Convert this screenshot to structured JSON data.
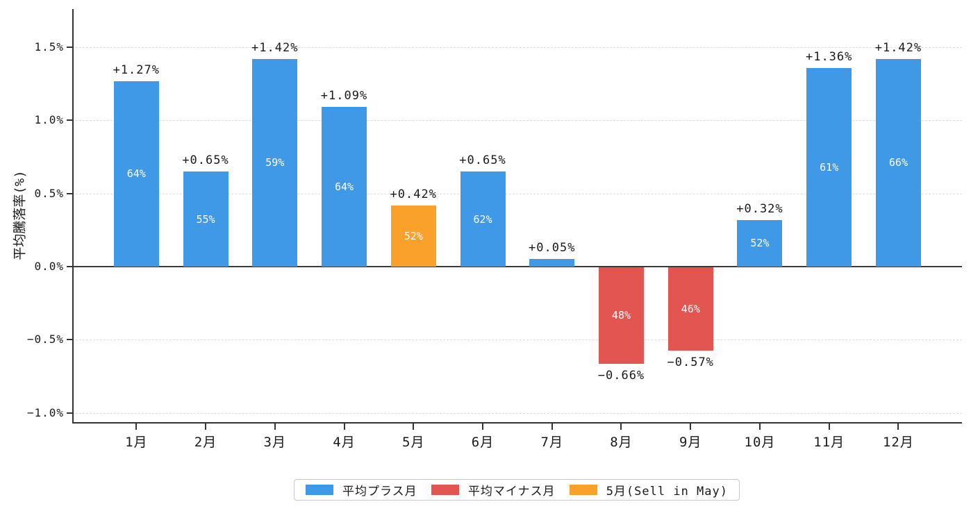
{
  "colors": {
    "plus": "#4099E6",
    "minus": "#E25550",
    "may": "#F9A12B",
    "grid": "#DCDCDC",
    "axis": "#333333",
    "zero_line": "#3A3A3A",
    "label_text": "#1A1A1A",
    "inside_label_text": "#FFFFFF",
    "legend_border": "#C9C9C9",
    "background": "#FFFFFF"
  },
  "legend": {
    "items": [
      {
        "key": "plus",
        "label": "平均プラス月"
      },
      {
        "key": "minus",
        "label": "平均マイナス月"
      },
      {
        "key": "may",
        "label": "5月(Sell in May)"
      }
    ]
  },
  "chart_data": {
    "type": "bar",
    "title": "",
    "xlabel": "",
    "ylabel": "平均騰落率(%)",
    "ylim": [
      -1.06,
      1.76
    ],
    "grid": "horizontal-dashed",
    "legend_position": "bottom-center",
    "yticks": [
      {
        "value": 1.5,
        "label": "1.5%"
      },
      {
        "value": 1.0,
        "label": "1.0%"
      },
      {
        "value": 0.5,
        "label": "0.5%"
      },
      {
        "value": 0.0,
        "label": "0.0%"
      },
      {
        "value": -0.5,
        "label": "−0.5%"
      },
      {
        "value": -1.0,
        "label": "−1.0%"
      }
    ],
    "categories": [
      "1月",
      "2月",
      "3月",
      "4月",
      "5月",
      "6月",
      "7月",
      "8月",
      "9月",
      "10月",
      "11月",
      "12月"
    ],
    "values": [
      1.27,
      0.65,
      1.42,
      1.09,
      0.42,
      0.65,
      0.05,
      -0.66,
      -0.57,
      0.32,
      1.36,
      1.42
    ],
    "bars": [
      {
        "month": "1月",
        "value": 1.27,
        "value_label": "+1.27%",
        "inside_label": "64%",
        "type": "plus"
      },
      {
        "month": "2月",
        "value": 0.65,
        "value_label": "+0.65%",
        "inside_label": "55%",
        "type": "plus"
      },
      {
        "month": "3月",
        "value": 1.42,
        "value_label": "+1.42%",
        "inside_label": "59%",
        "type": "plus"
      },
      {
        "month": "4月",
        "value": 1.09,
        "value_label": "+1.09%",
        "inside_label": "64%",
        "type": "plus"
      },
      {
        "month": "5月",
        "value": 0.42,
        "value_label": "+0.42%",
        "inside_label": "52%",
        "type": "may"
      },
      {
        "month": "6月",
        "value": 0.65,
        "value_label": "+0.65%",
        "inside_label": "62%",
        "type": "plus"
      },
      {
        "month": "7月",
        "value": 0.05,
        "value_label": "+0.05%",
        "inside_label": "",
        "type": "plus"
      },
      {
        "month": "8月",
        "value": -0.66,
        "value_label": "−0.66%",
        "inside_label": "48%",
        "type": "minus"
      },
      {
        "month": "9月",
        "value": -0.57,
        "value_label": "−0.57%",
        "inside_label": "46%",
        "type": "minus"
      },
      {
        "month": "10月",
        "value": 0.32,
        "value_label": "+0.32%",
        "inside_label": "52%",
        "type": "plus"
      },
      {
        "month": "11月",
        "value": 1.36,
        "value_label": "+1.36%",
        "inside_label": "61%",
        "type": "plus"
      },
      {
        "month": "12月",
        "value": 1.42,
        "value_label": "+1.42%",
        "inside_label": "66%",
        "type": "plus"
      }
    ]
  }
}
